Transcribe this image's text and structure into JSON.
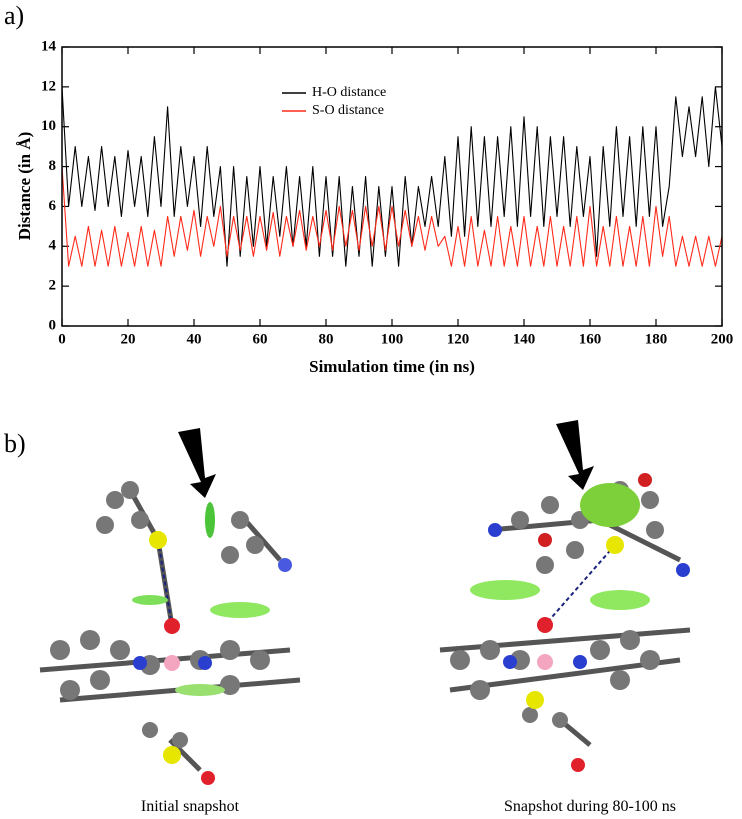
{
  "panel_labels": [
    "a)",
    "b)"
  ],
  "chart_data": {
    "type": "line",
    "x_label": "Simulation time (in ns)",
    "y_label": "Distance (in Å)",
    "x": [
      0,
      2,
      4,
      6,
      8,
      10,
      12,
      14,
      16,
      18,
      20,
      22,
      24,
      26,
      28,
      30,
      32,
      34,
      36,
      38,
      40,
      42,
      44,
      46,
      48,
      50,
      52,
      54,
      56,
      58,
      60,
      62,
      64,
      66,
      68,
      70,
      72,
      74,
      76,
      78,
      80,
      82,
      84,
      86,
      88,
      90,
      92,
      94,
      96,
      98,
      100,
      102,
      104,
      106,
      108,
      110,
      112,
      114,
      116,
      118,
      120,
      122,
      124,
      126,
      128,
      130,
      132,
      134,
      136,
      138,
      140,
      142,
      144,
      146,
      148,
      150,
      152,
      154,
      156,
      158,
      160,
      162,
      164,
      166,
      168,
      170,
      172,
      174,
      176,
      178,
      180,
      182,
      184,
      186,
      188,
      190,
      192,
      194,
      196,
      198,
      200
    ],
    "series": [
      {
        "name": "H-O distance",
        "color": "#000000",
        "values": [
          12,
          6,
          9,
          6,
          8.5,
          5.8,
          9,
          6,
          8.5,
          5.5,
          8.8,
          6,
          8.5,
          5.5,
          9.5,
          6,
          11,
          5.5,
          9,
          6,
          8.5,
          5,
          9,
          5.5,
          8,
          3,
          8,
          3.5,
          7.5,
          4,
          8,
          4,
          7.5,
          4.5,
          8,
          4,
          7.5,
          4,
          8,
          3.5,
          7.5,
          3.5,
          7.5,
          3,
          7,
          3.5,
          7.5,
          3,
          7,
          3.5,
          7,
          3,
          7.5,
          4,
          7,
          5,
          7.5,
          5,
          8.5,
          4.5,
          9.5,
          4.5,
          10,
          5,
          9.5,
          5,
          9.5,
          5.5,
          10,
          5,
          10.5,
          5.5,
          10,
          5,
          9.5,
          5.5,
          9.5,
          5,
          9,
          5.5,
          8.5,
          3.5,
          9,
          5,
          10,
          5.5,
          9.5,
          5,
          10,
          5.5,
          10,
          5,
          7,
          11.5,
          8.5,
          11,
          8.5,
          11.5,
          8,
          12,
          9
        ]
      },
      {
        "name": "S-O distance",
        "color": "#ff2a1a",
        "values": [
          8,
          3,
          4.5,
          3,
          5,
          3,
          4.8,
          3,
          5,
          3,
          4.7,
          3,
          5,
          3,
          4.8,
          3,
          5.5,
          3.5,
          5.5,
          3.8,
          5.8,
          3.5,
          5.5,
          4,
          6,
          3.5,
          5.5,
          3.8,
          5.5,
          3.5,
          5.5,
          3.8,
          5.7,
          3.5,
          5.5,
          4,
          5.8,
          3.8,
          5.5,
          4,
          5.8,
          3.8,
          6,
          4,
          5.8,
          3.8,
          6,
          4,
          6,
          3.8,
          6,
          4,
          5.8,
          4,
          5.5,
          3.8,
          5.5,
          4,
          4.5,
          3,
          5,
          3,
          5.5,
          3,
          4.8,
          3,
          5.5,
          3,
          5,
          3,
          5.5,
          3,
          5,
          3,
          5.5,
          3,
          5,
          3,
          5.5,
          3,
          6,
          3,
          5,
          3,
          5.5,
          3,
          5,
          3,
          5.5,
          3,
          6,
          3.5,
          5.5,
          3,
          4.5,
          3,
          4.5,
          3,
          4.5,
          3,
          4.5
        ]
      }
    ],
    "xlim": [
      0,
      200
    ],
    "ylim": [
      0,
      14
    ],
    "xticks": [
      0,
      20,
      40,
      60,
      80,
      100,
      120,
      140,
      160,
      180,
      200
    ],
    "yticks": [
      0,
      2,
      4,
      6,
      8,
      10,
      12,
      14
    ],
    "legend": "upper-left"
  },
  "snapshots": [
    {
      "caption": "Initial snapshot"
    },
    {
      "caption": "Snapshot during 80-100 ns"
    }
  ]
}
